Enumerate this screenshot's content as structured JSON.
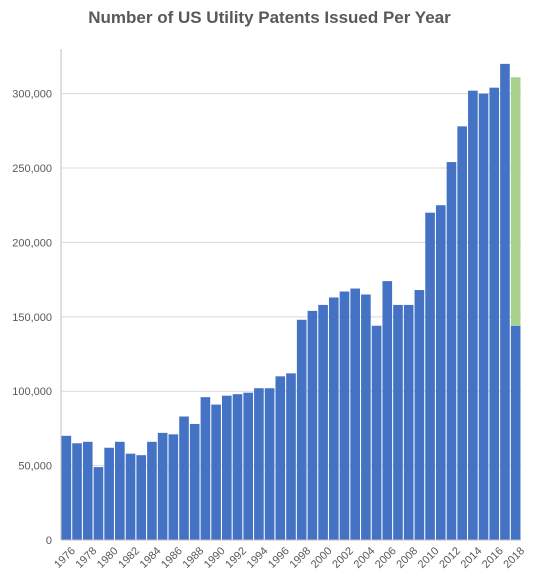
{
  "chart_data": {
    "type": "bar",
    "title": "Number of US Utility Patents Issued Per Year",
    "xlabel": "",
    "ylabel": "",
    "ylim": [
      0,
      330000
    ],
    "yticks": [
      0,
      50000,
      100000,
      150000,
      200000,
      250000,
      300000
    ],
    "ytick_labels": [
      "0",
      "50,000",
      "100,000",
      "150,000",
      "200,000",
      "250,000",
      "300,000"
    ],
    "grid": true,
    "legend": "none",
    "categories": [
      "1976",
      "1977",
      "1978",
      "1979",
      "1980",
      "1981",
      "1982",
      "1983",
      "1984",
      "1985",
      "1986",
      "1987",
      "1988",
      "1989",
      "1990",
      "1991",
      "1992",
      "1993",
      "1994",
      "1995",
      "1996",
      "1997",
      "1998",
      "1999",
      "2000",
      "2001",
      "2002",
      "2003",
      "2004",
      "2005",
      "2006",
      "2007",
      "2008",
      "2009",
      "2010",
      "2011",
      "2012",
      "2013",
      "2014",
      "2015",
      "2016",
      "2017",
      "2018"
    ],
    "xtick_labels": [
      "1976",
      "1978",
      "1980",
      "1982",
      "1984",
      "1986",
      "1988",
      "1990",
      "1992",
      "1994",
      "1996",
      "1998",
      "2000",
      "2002",
      "2004",
      "2006",
      "2008",
      "2010",
      "2012",
      "2014",
      "2016",
      "2018"
    ],
    "series": [
      {
        "color": "#4472C4",
        "values": [
          70000,
          65000,
          66000,
          49000,
          62000,
          66000,
          58000,
          57000,
          66000,
          72000,
          71000,
          83000,
          78000,
          96000,
          91000,
          97000,
          98000,
          99000,
          102000,
          102000,
          110000,
          112000,
          148000,
          154000,
          158000,
          163000,
          167000,
          169000,
          165000,
          144000,
          174000,
          158000,
          158000,
          168000,
          220000,
          225000,
          254000,
          278000,
          302000,
          300000,
          304000,
          320000,
          144000
        ]
      },
      {
        "color": "#A9D18E",
        "stacked_on_category": "2018",
        "values": [
          0,
          0,
          0,
          0,
          0,
          0,
          0,
          0,
          0,
          0,
          0,
          0,
          0,
          0,
          0,
          0,
          0,
          0,
          0,
          0,
          0,
          0,
          0,
          0,
          0,
          0,
          0,
          0,
          0,
          0,
          0,
          0,
          0,
          0,
          0,
          0,
          0,
          0,
          0,
          0,
          0,
          0,
          167000
        ]
      }
    ]
  }
}
